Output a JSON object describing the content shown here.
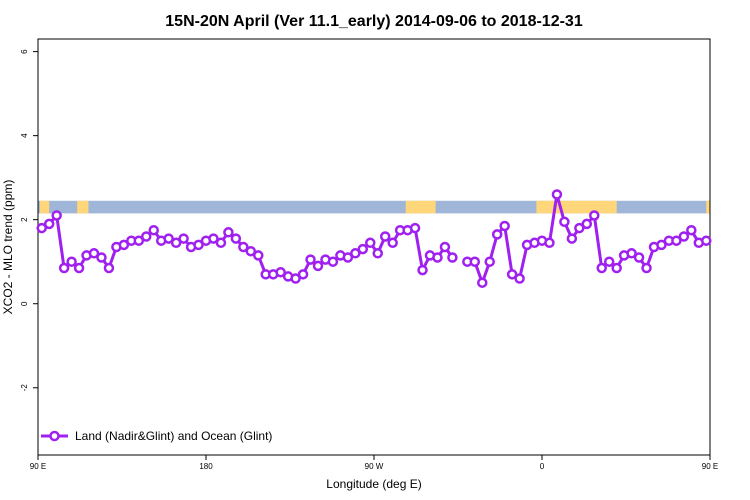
{
  "chart_data": {
    "type": "line",
    "title": "15N-20N April (Ver 11.1_early)   2014-09-06 to 2018-12-31",
    "xlabel": "Longitude (deg E)",
    "ylabel": "XCO2 - MLO trend (ppm)",
    "xlim": [
      90,
      450
    ],
    "ylim": [
      -3.6,
      6.3
    ],
    "xticks": [
      {
        "value": 90,
        "label": "90 E"
      },
      {
        "value": 180,
        "label": "180"
      },
      {
        "value": 270,
        "label": "90 W"
      },
      {
        "value": 360,
        "label": "0"
      },
      {
        "value": 450,
        "label": "90 E"
      },
      {
        "value": 540,
        "label": "180"
      }
    ],
    "yticks": [
      {
        "value": -2,
        "label": "-2"
      },
      {
        "value": 0,
        "label": "0"
      },
      {
        "value": 2,
        "label": "2"
      },
      {
        "value": 4,
        "label": "4"
      },
      {
        "value": 6,
        "label": "6"
      }
    ],
    "colors": {
      "series": "#a020f0",
      "ocean": "#9fb6d9",
      "land": "#ffd77a"
    },
    "land_ocean_strip": {
      "y_range": [
        2.15,
        2.45
      ],
      "land_segments": [
        [
          91,
          96
        ],
        [
          111,
          117
        ],
        [
          287,
          303
        ],
        [
          357,
          400
        ],
        [
          448,
          470
        ],
        [
          475,
          480
        ],
        [
          498,
          515
        ],
        [
          523,
          530
        ]
      ]
    },
    "legend": {
      "position": "bottom-left"
    },
    "series": [
      {
        "name": "Land (Nadir&Glint) and Ocean (Glint)",
        "points": [
          [
            92,
            1.8
          ],
          [
            96,
            1.9
          ],
          [
            100,
            2.1
          ],
          [
            104,
            0.85
          ],
          [
            108,
            1.0
          ],
          [
            112,
            0.85
          ],
          [
            116,
            1.15
          ],
          [
            120,
            1.2
          ],
          [
            124,
            1.1
          ],
          [
            128,
            0.85
          ],
          [
            132,
            1.35
          ],
          [
            136,
            1.4
          ],
          [
            140,
            1.5
          ],
          [
            144,
            1.5
          ],
          [
            148,
            1.6
          ],
          [
            152,
            1.75
          ],
          [
            156,
            1.5
          ],
          [
            160,
            1.55
          ],
          [
            164,
            1.45
          ],
          [
            168,
            1.55
          ],
          [
            172,
            1.35
          ],
          [
            176,
            1.4
          ],
          [
            180,
            1.5
          ],
          [
            184,
            1.55
          ],
          [
            188,
            1.45
          ],
          [
            192,
            1.7
          ],
          [
            196,
            1.55
          ],
          [
            200,
            1.35
          ],
          [
            204,
            1.25
          ],
          [
            208,
            1.15
          ],
          [
            212,
            0.7
          ],
          [
            216,
            0.7
          ],
          [
            220,
            0.75
          ],
          [
            224,
            0.65
          ],
          [
            228,
            0.6
          ],
          [
            232,
            0.7
          ],
          [
            236,
            1.05
          ],
          [
            240,
            0.9
          ],
          [
            244,
            1.05
          ],
          [
            248,
            1.0
          ],
          [
            252,
            1.15
          ],
          [
            256,
            1.1
          ],
          [
            260,
            1.2
          ],
          [
            264,
            1.3
          ],
          [
            268,
            1.45
          ],
          [
            272,
            1.2
          ],
          [
            276,
            1.6
          ],
          [
            280,
            1.45
          ],
          [
            284,
            1.75
          ],
          [
            288,
            1.75
          ],
          [
            292,
            1.8
          ],
          [
            296,
            0.8
          ],
          [
            300,
            1.15
          ],
          [
            304,
            1.1
          ],
          [
            308,
            1.35
          ],
          [
            312,
            1.1
          ],
          null,
          [
            320,
            1.0
          ],
          [
            324,
            1.0
          ],
          [
            328,
            0.5
          ],
          [
            332,
            1.0
          ],
          [
            336,
            1.65
          ],
          [
            340,
            1.85
          ],
          [
            344,
            0.7
          ],
          [
            348,
            0.6
          ],
          [
            352,
            1.4
          ],
          [
            356,
            1.45
          ],
          [
            360,
            1.5
          ],
          [
            364,
            1.45
          ],
          [
            368,
            2.6
          ],
          [
            372,
            1.95
          ],
          [
            376,
            1.55
          ],
          [
            380,
            1.8
          ],
          [
            384,
            1.9
          ],
          [
            388,
            2.1
          ],
          [
            392,
            0.85
          ],
          [
            396,
            1.0
          ],
          [
            400,
            0.85
          ],
          [
            404,
            1.15
          ],
          [
            408,
            1.2
          ],
          [
            412,
            1.1
          ],
          [
            416,
            0.85
          ],
          [
            420,
            1.35
          ],
          [
            424,
            1.4
          ],
          [
            428,
            1.5
          ],
          [
            432,
            1.5
          ],
          [
            436,
            1.6
          ],
          [
            440,
            1.75
          ],
          [
            444,
            1.45
          ],
          [
            448,
            1.5
          ]
        ]
      }
    ]
  }
}
